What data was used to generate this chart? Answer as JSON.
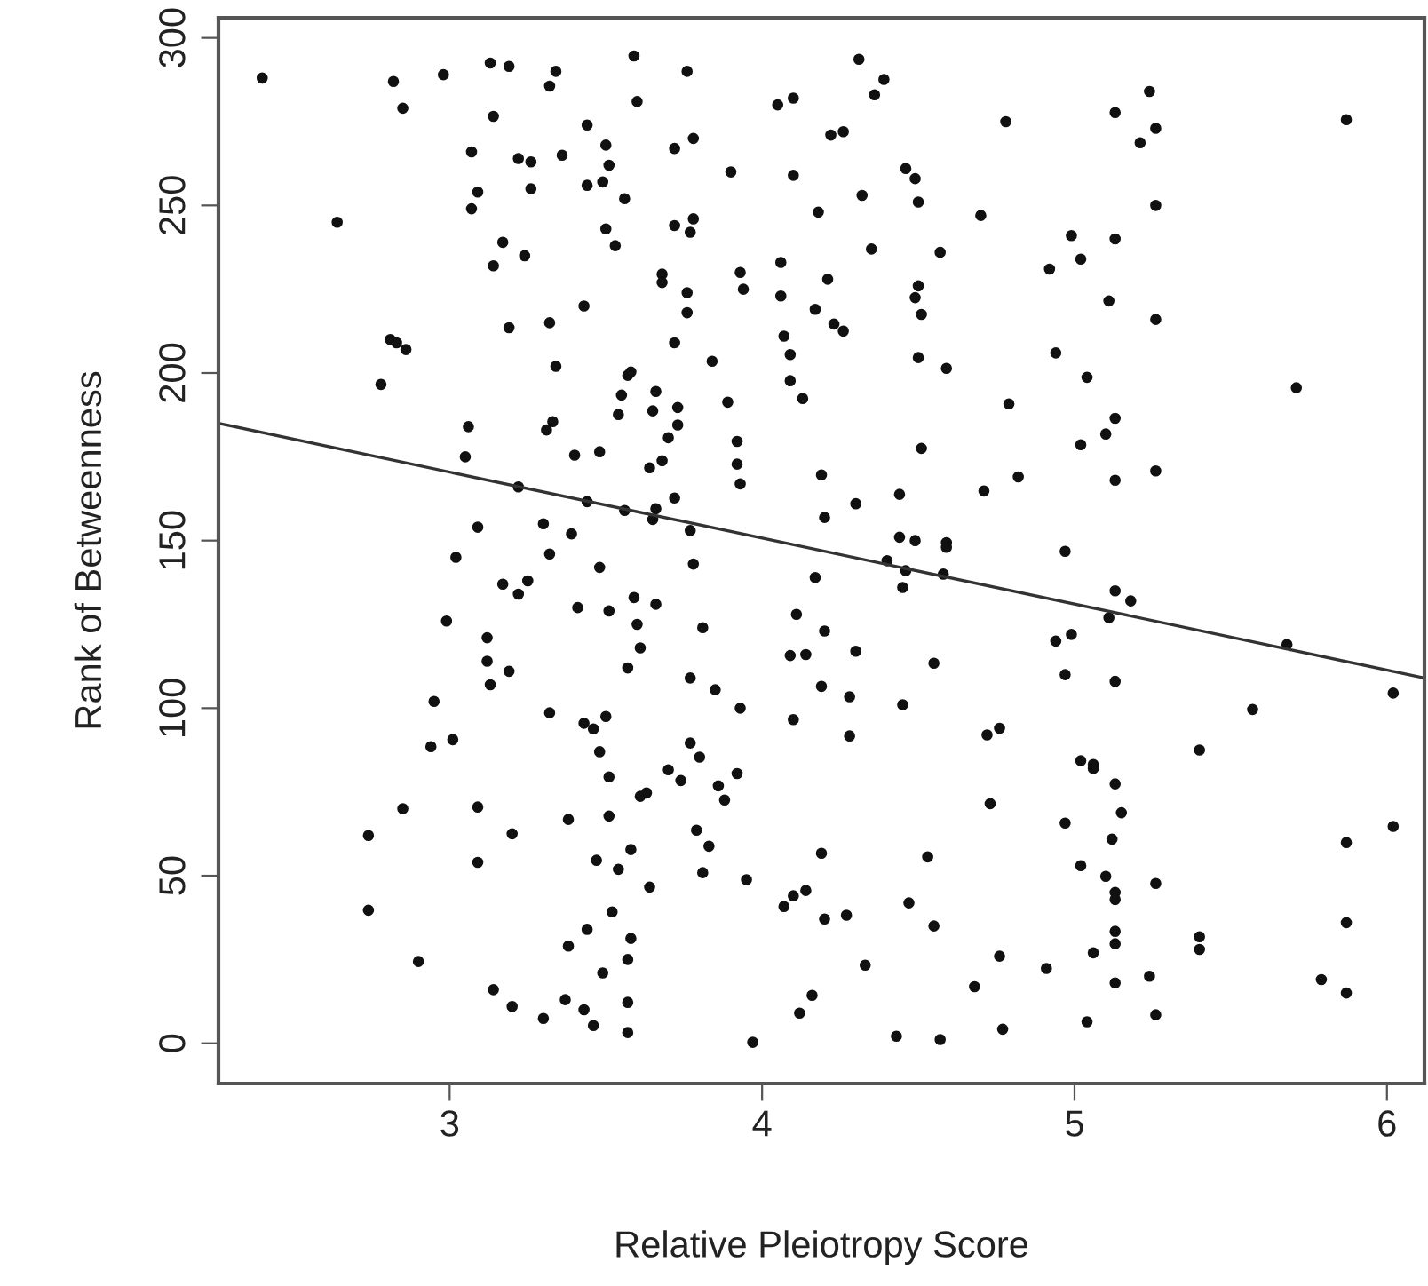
{
  "chart_data": {
    "type": "scatter",
    "xlabel": "Relative Pleiotropy Score",
    "ylabel": "Rank of Betweenness",
    "xlim": [
      2.26,
      6.12
    ],
    "ylim": [
      -12,
      306
    ],
    "xticks": [
      3,
      4,
      5,
      6
    ],
    "yticks": [
      0,
      50,
      100,
      150,
      200,
      250,
      300
    ],
    "grid": false,
    "marker": "circle",
    "series": [
      {
        "color": "#111111",
        "x": [
          2.4,
          2.82,
          2.85,
          2.98,
          3.13,
          3.19,
          3.34,
          3.32,
          3.14,
          3.44,
          3.5,
          3.51,
          3.07,
          3.22,
          3.26,
          3.36,
          3.26,
          3.09,
          3.07,
          3.44,
          3.49,
          2.64,
          3.5,
          3.53,
          3.17,
          3.24,
          3.14,
          3.43,
          3.32,
          3.19,
          2.81,
          2.83,
          2.86,
          3.34,
          2.78,
          3.06,
          3.33,
          3.31,
          3.4,
          3.48,
          3.05,
          3.22,
          3.44,
          3.09,
          3.3,
          3.39,
          3.02,
          3.32,
          3.59,
          3.76,
          3.6,
          3.72,
          3.78,
          3.56,
          3.72,
          3.78,
          3.77,
          3.9,
          4.1,
          4.05,
          4.1,
          4.31,
          4.39,
          4.36,
          4.22,
          4.26,
          4.46,
          4.49,
          4.5,
          4.32,
          4.18,
          4.7,
          4.78,
          4.35,
          4.57,
          3.68,
          3.68,
          3.93,
          3.94,
          4.06,
          4.06,
          4.21,
          4.17,
          4.23,
          4.26,
          4.5,
          4.49,
          4.51,
          3.76,
          3.76,
          3.72,
          3.84,
          4.07,
          4.09,
          4.09,
          4.13,
          4.5,
          4.59,
          4.79,
          3.57,
          3.58,
          3.55,
          3.54,
          3.66,
          3.65,
          3.73,
          3.73,
          3.7,
          3.89,
          3.92,
          3.92,
          3.93,
          3.64,
          3.68,
          3.56,
          3.72,
          3.66,
          3.65,
          3.77,
          4.19,
          4.2,
          4.3,
          4.44,
          4.71,
          4.82,
          4.51,
          4.44,
          4.49,
          4.59,
          4.59,
          5.24,
          5.13,
          5.26,
          5.21,
          5.87,
          5.26,
          4.99,
          5.13,
          5.02,
          4.92,
          5.11,
          5.26,
          4.94,
          5.04,
          5.71,
          5.13,
          5.1,
          5.02,
          5.13,
          5.26,
          4.97,
          3.48,
          3.17,
          3.25,
          3.22,
          3.41,
          3.51,
          2.99,
          3.12,
          3.12,
          3.19,
          3.13,
          2.95,
          3.32,
          3.43,
          3.46,
          3.5,
          3.48,
          3.51,
          2.94,
          3.01,
          2.85,
          3.09,
          3.2,
          3.38,
          3.51,
          2.74,
          3.09,
          3.47,
          3.54,
          2.74,
          3.52,
          3.44,
          3.38,
          2.9,
          3.49,
          3.14,
          3.2,
          3.37,
          3.43,
          3.3,
          3.46,
          3.78,
          4.17,
          4.4,
          4.46,
          4.45,
          4.58,
          3.59,
          3.66,
          3.6,
          3.81,
          3.61,
          3.57,
          3.77,
          3.85,
          3.93,
          4.11,
          4.2,
          4.09,
          4.14,
          4.3,
          4.19,
          4.28,
          4.1,
          4.28,
          4.45,
          4.55,
          4.72,
          4.76,
          4.73,
          3.77,
          3.8,
          3.7,
          3.74,
          3.86,
          3.92,
          3.88,
          3.61,
          3.63,
          3.79,
          3.83,
          3.81,
          3.95,
          3.58,
          3.64,
          3.58,
          3.57,
          3.57,
          3.57,
          3.97,
          4.19,
          4.07,
          4.1,
          4.14,
          4.2,
          4.27,
          4.47,
          4.53,
          4.55,
          4.33,
          4.16,
          4.12,
          4.43,
          4.57,
          4.77,
          4.68,
          4.76,
          5.13,
          5.18,
          5.11,
          4.94,
          4.99,
          4.97,
          5.13,
          5.68,
          5.57,
          6.02,
          5.4,
          5.02,
          5.06,
          5.06,
          5.13,
          5.15,
          4.97,
          5.12,
          6.02,
          5.87,
          5.02,
          5.1,
          5.26,
          5.13,
          5.13,
          5.13,
          5.13,
          5.4,
          5.4,
          5.87,
          5.06,
          4.91,
          5.13,
          5.24,
          5.79,
          5.87,
          5.04,
          5.26
        ],
        "values": [
          288,
          287,
          279,
          289,
          292.5,
          291.5,
          290,
          285.6,
          276.6,
          274,
          268,
          262,
          266,
          264,
          263,
          265,
          255,
          254,
          249,
          256,
          257,
          245,
          243,
          238,
          239,
          235,
          232,
          220,
          215,
          213.5,
          210,
          209,
          207,
          202,
          196.6,
          184,
          185.5,
          183,
          175.5,
          176.5,
          175,
          166,
          161.6,
          154,
          155,
          152,
          145,
          146,
          294.6,
          290,
          281,
          267,
          270,
          252,
          244,
          246,
          242,
          260,
          259,
          280,
          282,
          293.6,
          287.6,
          283,
          271,
          272,
          261,
          258,
          251,
          253,
          248,
          247,
          275,
          237,
          236,
          229.5,
          227,
          230,
          225,
          233,
          223,
          228,
          219,
          214.6,
          212.5,
          226,
          222.5,
          217.5,
          224,
          218,
          209,
          203.5,
          211,
          205.5,
          197.7,
          192.4,
          204.6,
          201.4,
          190.8,
          199.3,
          200.3,
          193.4,
          187.6,
          194.5,
          188.7,
          189.7,
          184.5,
          180.7,
          191.3,
          179.6,
          172.8,
          166.9,
          171.7,
          173.8,
          159,
          162.7,
          159.5,
          156.3,
          153,
          169.6,
          156.9,
          161,
          163.8,
          164.8,
          169,
          177.5,
          151,
          150,
          149.4,
          148,
          284,
          277.7,
          273,
          268.7,
          275.6,
          250,
          241,
          240,
          234,
          231,
          221.5,
          216,
          206,
          198.7,
          195.6,
          186.5,
          181.8,
          178.6,
          168,
          170.8,
          146.8,
          142,
          137,
          138,
          134,
          130,
          129,
          126,
          121,
          114,
          111,
          107,
          102,
          98.6,
          95.5,
          93.8,
          97.5,
          87,
          79.5,
          88.5,
          90.6,
          70,
          70.5,
          62.5,
          66.8,
          67.8,
          62,
          54,
          54.6,
          51.9,
          39.7,
          39.2,
          34,
          29,
          24.4,
          21,
          16,
          11,
          13,
          10,
          7.4,
          5.3,
          143,
          139,
          144,
          141,
          136,
          140,
          133,
          131,
          125,
          124,
          118,
          112,
          109,
          105.5,
          100,
          128,
          123,
          115.7,
          116,
          117,
          106.5,
          103.4,
          96.6,
          91.7,
          101,
          113.4,
          92,
          94,
          71.5,
          89.6,
          85.4,
          81.6,
          78.4,
          76.8,
          80.5,
          72.6,
          73.7,
          74.7,
          63.6,
          58.8,
          50.9,
          48.8,
          57.8,
          46.6,
          31.3,
          25,
          12.2,
          3.2,
          0.3,
          56.7,
          40.8,
          44,
          45.6,
          37.1,
          38.2,
          41.9,
          55.6,
          35,
          23.3,
          14.3,
          9,
          2.1,
          1.1,
          4.2,
          16.9,
          26,
          135,
          132,
          127,
          120,
          122,
          110,
          108,
          119,
          99.6,
          104.5,
          87.5,
          84.3,
          83.2,
          82,
          77.4,
          68.8,
          65.7,
          60.9,
          64.7,
          59.9,
          53,
          49.8,
          47.7,
          45,
          42.9,
          33.4,
          29.7,
          31.8,
          28,
          36,
          27,
          22.3,
          18,
          20,
          19,
          15,
          6.4,
          8.5
        ]
      },
      {
        "type": "line",
        "color": "#333333",
        "x": [
          2.26,
          6.12
        ],
        "values": [
          185,
          109
        ],
        "marker": "none",
        "line_style": "solid"
      }
    ]
  }
}
